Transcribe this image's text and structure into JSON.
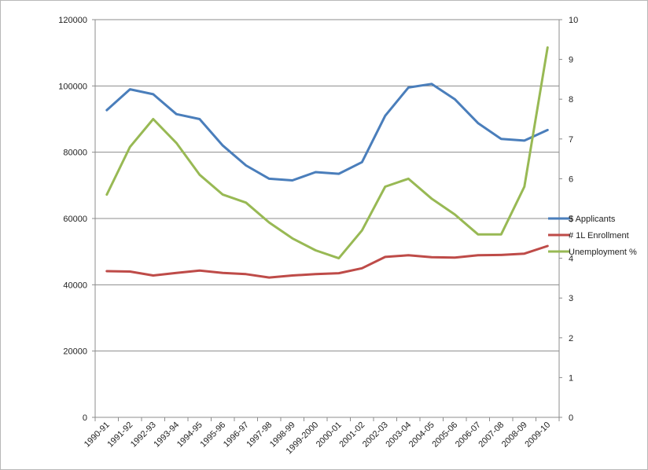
{
  "chart_data": {
    "type": "line",
    "categories": [
      "1990-91",
      "1991-92",
      "1992-93",
      "1993-94",
      "1994-95",
      "1995-96",
      "1996-97",
      "1997-98",
      "1998-99",
      "1999-2000",
      "2000-01",
      "2001-02",
      "2002-03",
      "2003-04",
      "2004-05",
      "2005-06",
      "2006-07",
      "2007-08",
      "2008-09",
      "2009-10"
    ],
    "series": [
      {
        "name": "$ Applicants",
        "axis": "left",
        "color": "#4a7ebb",
        "values": [
          92700,
          99000,
          97500,
          91500,
          90000,
          82000,
          76000,
          72000,
          71500,
          74000,
          73500,
          77000,
          91000,
          99500,
          100600,
          96000,
          88800,
          84000,
          83500,
          86700
        ]
      },
      {
        "name": "# 1L Enrollment",
        "axis": "left",
        "color": "#be4b48",
        "values": [
          44100,
          44000,
          42800,
          43600,
          44300,
          43600,
          43200,
          42200,
          42800,
          43200,
          43500,
          45000,
          48400,
          48900,
          48300,
          48200,
          48900,
          49000,
          49400,
          51700
        ]
      },
      {
        "name": "Unemployment %",
        "axis": "right",
        "color": "#98b954",
        "values": [
          5.6,
          6.8,
          7.5,
          6.9,
          6.1,
          5.6,
          5.4,
          4.9,
          4.5,
          4.2,
          4.0,
          4.7,
          5.8,
          6.0,
          5.5,
          5.1,
          4.6,
          4.6,
          5.8,
          9.3
        ]
      }
    ],
    "y_left": {
      "min": 0,
      "max": 120000,
      "ticks": [
        0,
        20000,
        40000,
        60000,
        80000,
        100000,
        120000
      ]
    },
    "y_right": {
      "min": 0,
      "max": 10,
      "ticks": [
        0,
        1,
        2,
        3,
        4,
        5,
        6,
        7,
        8,
        9,
        10
      ]
    },
    "legend_position": "right",
    "grid": true
  }
}
